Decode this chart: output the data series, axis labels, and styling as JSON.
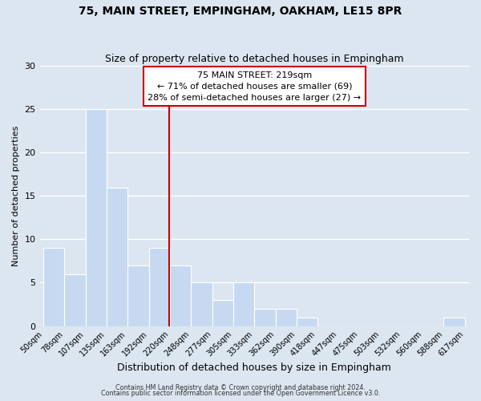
{
  "title_line1": "75, MAIN STREET, EMPINGHAM, OAKHAM, LE15 8PR",
  "title_line2": "Size of property relative to detached houses in Empingham",
  "xlabel": "Distribution of detached houses by size in Empingham",
  "ylabel": "Number of detached properties",
  "bar_edges": [
    50,
    78,
    107,
    135,
    163,
    192,
    220,
    248,
    277,
    305,
    333,
    362,
    390,
    418,
    447,
    475,
    503,
    532,
    560,
    588,
    617
  ],
  "bar_heights": [
    9,
    6,
    25,
    16,
    7,
    9,
    7,
    5,
    3,
    5,
    2,
    2,
    1,
    0,
    0,
    0,
    0,
    0,
    0,
    1
  ],
  "tick_labels": [
    "50sqm",
    "78sqm",
    "107sqm",
    "135sqm",
    "163sqm",
    "192sqm",
    "220sqm",
    "248sqm",
    "277sqm",
    "305sqm",
    "333sqm",
    "362sqm",
    "390sqm",
    "418sqm",
    "447sqm",
    "475sqm",
    "503sqm",
    "532sqm",
    "560sqm",
    "588sqm",
    "617sqm"
  ],
  "bar_color": "#c6d9f0",
  "bar_edge_color": "#ffffff",
  "grid_color": "#ffffff",
  "bg_color": "#dce6f1",
  "property_line_x": 219,
  "property_line_color": "#cc0000",
  "annotation_line1": "75 MAIN STREET: 219sqm",
  "annotation_line2": "← 71% of detached houses are smaller (69)",
  "annotation_line3": "28% of semi-detached houses are larger (27) →",
  "annotation_box_color": "#cc0000",
  "ylim": [
    0,
    30
  ],
  "yticks": [
    0,
    5,
    10,
    15,
    20,
    25,
    30
  ],
  "footer_line1": "Contains HM Land Registry data © Crown copyright and database right 2024.",
  "footer_line2": "Contains public sector information licensed under the Open Government Licence v3.0."
}
